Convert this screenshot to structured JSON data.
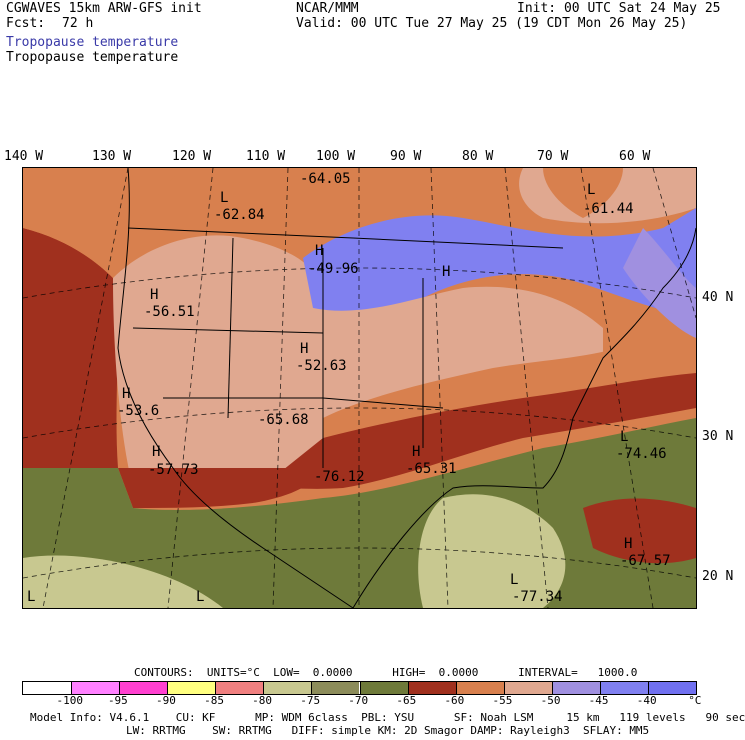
{
  "header": {
    "model": "CGWAVES 15km ARW-GFS init",
    "fcst_label": "Fcst:",
    "fcst_value": "72 h",
    "org": "NCAR/MMM",
    "init": "Init: 00 UTC Sat 24 May 25",
    "valid": "Valid: 00 UTC Tue 27 May 25 (19 CDT Mon 26 May 25)",
    "field_blue": "Tropopause temperature",
    "field_black": "Tropopause temperature"
  },
  "map": {
    "lon_labels": [
      "140 W",
      "130 W",
      "120 W",
      "110 W",
      "100 W",
      "90 W",
      "80 W",
      "70 W",
      "60 W"
    ],
    "lat_labels": [
      "40 N",
      "30 N",
      "20 N"
    ],
    "highs": [
      {
        "mark": "H",
        "value": "-56.51"
      },
      {
        "mark": "H",
        "value": "-49.96"
      },
      {
        "mark": "H",
        "value": "-52.63"
      },
      {
        "mark": "H",
        "value": "-53.6"
      },
      {
        "mark": "H",
        "value": "-57.73"
      },
      {
        "mark": "H",
        "value": "-65.31"
      },
      {
        "mark": "H",
        "value": "-67.57"
      }
    ],
    "lows": [
      {
        "mark": "L",
        "value": "-62.84"
      },
      {
        "mark": "L",
        "value": "-64.05"
      },
      {
        "mark": "L",
        "value": "-61.44"
      },
      {
        "mark": "L",
        "value": "-65.68"
      },
      {
        "mark": "L",
        "value": "-76.12"
      },
      {
        "mark": "L",
        "value": "-74.46"
      },
      {
        "mark": "L",
        "value": "-77.34"
      },
      {
        "mark": "L",
        "value": ""
      },
      {
        "mark": "L",
        "value": ""
      },
      {
        "mark": "H",
        "value": ""
      }
    ]
  },
  "legend": {
    "contours": "CONTOURS:  UNITS=°C  LOW=  0.0000      HIGH=  0.0000      INTERVAL=   1000.0",
    "colors": [
      "#ffffff",
      "#ff80ff",
      "#ff40d0",
      "#ffff80",
      "#f08080",
      "#c8c890",
      "#8c8c5a",
      "#6e7a3a",
      "#a0301e",
      "#d8804e",
      "#e0a890",
      "#a090e0",
      "#8080f0",
      "#7070f0"
    ],
    "labels": [
      "-100",
      "-95",
      "-90",
      "-85",
      "-80",
      "-75",
      "-70",
      "-65",
      "-60",
      "-55",
      "-50",
      "-45",
      "-40",
      "°C"
    ]
  },
  "footer": {
    "line1": "Model Info: V4.6.1    CU: KF      MP: WDM 6class  PBL: YSU      SF: Noah LSM     15 km   119 levels   90 sec",
    "line2": "LW: RRTMG    SW: RRTMG   DIFF: simple KM: 2D Smagor DAMP: Rayleigh3  SFLAY: MM5"
  }
}
